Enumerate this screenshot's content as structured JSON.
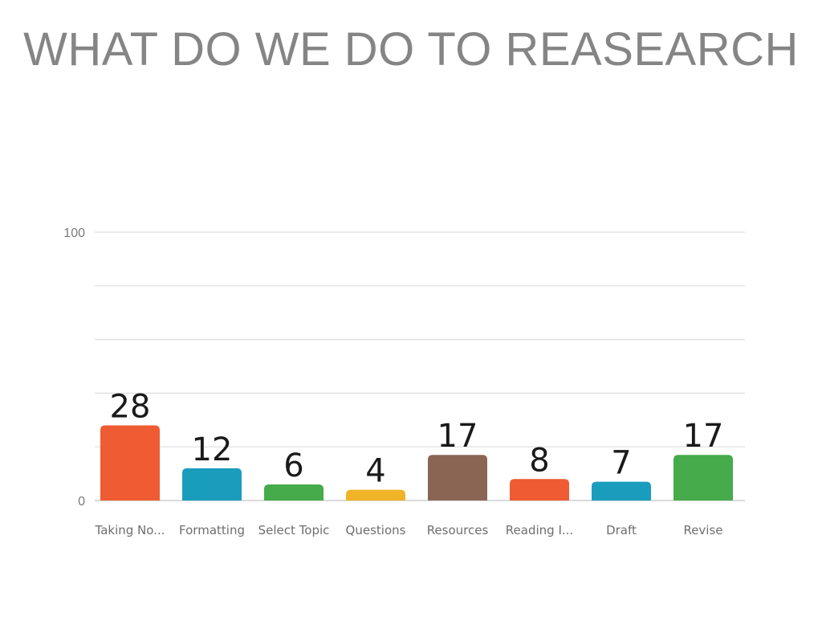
{
  "slide": {
    "title": "WHAT DO WE DO TO REASEARCH"
  },
  "chart_data": {
    "type": "bar",
    "categories": [
      "Taking No...",
      "Formatting",
      "Select Topic",
      "Questions",
      "Resources",
      "Reading I...",
      "Draft",
      "Revise"
    ],
    "values": [
      28,
      12,
      6,
      4,
      17,
      8,
      7,
      17
    ],
    "colors": [
      "#ef5b33",
      "#1a9dbd",
      "#46ab4a",
      "#f0b429",
      "#8b6553",
      "#ef5b33",
      "#1a9dbd",
      "#46ab4a"
    ],
    "ylim": [
      0,
      100
    ],
    "yticks": [
      "0",
      "100"
    ],
    "grid": true,
    "gridline_count": 6,
    "title": "",
    "xlabel": "",
    "ylabel": ""
  }
}
